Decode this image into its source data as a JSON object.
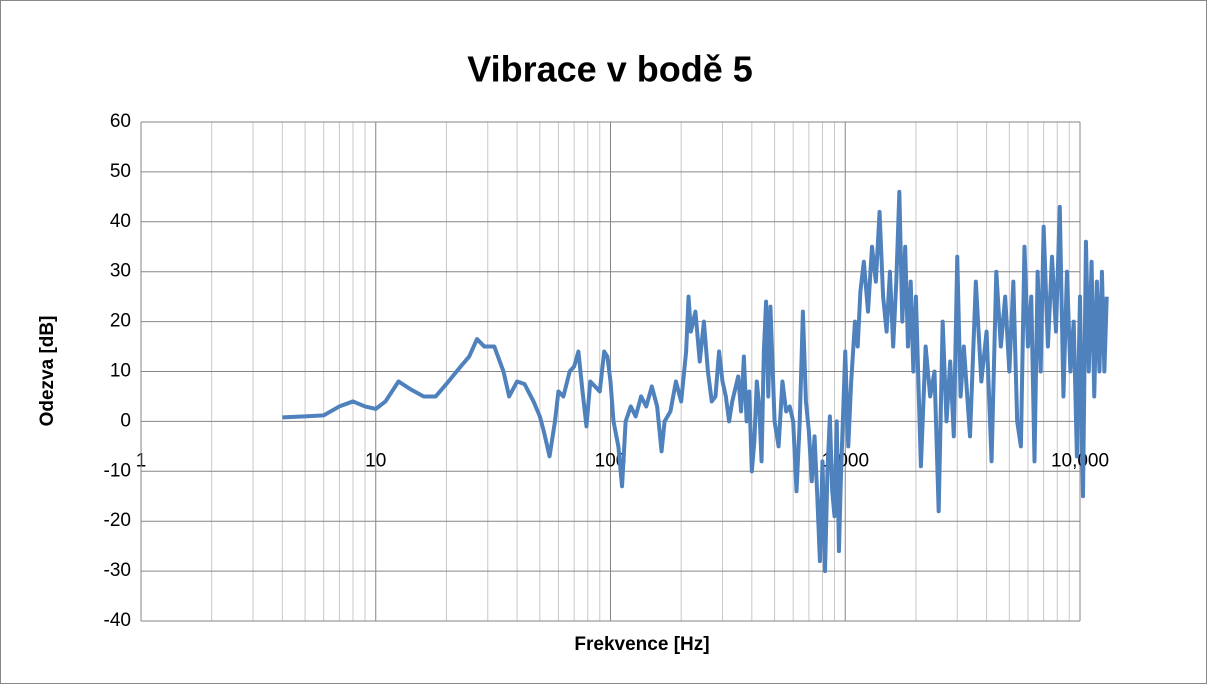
{
  "chart_data": {
    "type": "line",
    "title": "Vibrace v bodě 5",
    "x_label": "Frekvence [Hz]",
    "y_label": "Odezva [dB]",
    "xscale": "log",
    "grid": true,
    "xlim": [
      1,
      10000
    ],
    "ylim": [
      -40,
      60
    ],
    "xticks": [
      1,
      10,
      100,
      {
        "value": 1000,
        "label": "1,000"
      },
      {
        "value": 10000,
        "label": "10,000"
      }
    ],
    "yticks": [
      -40,
      -30,
      -20,
      -10,
      0,
      10,
      20,
      30,
      40,
      50,
      60
    ],
    "x": [
      4,
      5,
      6,
      7,
      8,
      9,
      10,
      11,
      12.5,
      14,
      16,
      18,
      20,
      23,
      25,
      27,
      29,
      32,
      35,
      37,
      40,
      43,
      47,
      50,
      52,
      55,
      58,
      60,
      63,
      67,
      70,
      73,
      76,
      79,
      82,
      86,
      90,
      94,
      97,
      100,
      103,
      108,
      112,
      116,
      122,
      128,
      135,
      142,
      150,
      158,
      165,
      170,
      180,
      190,
      200,
      210,
      215,
      220,
      230,
      240,
      250,
      260,
      270,
      280,
      290,
      300,
      310,
      320,
      330,
      350,
      360,
      370,
      380,
      390,
      400,
      410,
      420,
      430,
      440,
      450,
      460,
      470,
      480,
      500,
      520,
      540,
      560,
      580,
      600,
      620,
      640,
      660,
      680,
      700,
      720,
      740,
      760,
      780,
      800,
      820,
      840,
      860,
      880,
      900,
      920,
      940,
      960,
      980,
      1000,
      1030,
      1060,
      1100,
      1130,
      1160,
      1200,
      1250,
      1300,
      1350,
      1400,
      1450,
      1500,
      1550,
      1600,
      1650,
      1700,
      1750,
      1800,
      1850,
      1900,
      1950,
      2000,
      2100,
      2200,
      2300,
      2400,
      2500,
      2600,
      2700,
      2800,
      2900,
      3000,
      3100,
      3200,
      3400,
      3600,
      3800,
      4000,
      4200,
      4400,
      4600,
      4800,
      5000,
      5200,
      5400,
      5600,
      5800,
      6000,
      6200,
      6400,
      6600,
      6800,
      7000,
      7300,
      7600,
      7900,
      8200,
      8500,
      8800,
      9100,
      9400,
      9700,
      10000,
      10300,
      10600,
      10900,
      11200,
      11500,
      11800,
      12100,
      12400,
      12700,
      13000
    ],
    "series": [
      {
        "name": "Odezva",
        "color": "#4f81bd",
        "values": [
          0.8,
          1,
          1.2,
          3,
          4,
          3,
          2.5,
          4,
          8,
          6.5,
          5,
          5,
          7.5,
          11,
          13,
          16.5,
          15,
          15,
          10,
          5,
          8,
          7.5,
          4,
          1,
          -2,
          -7,
          0,
          6,
          5,
          10,
          11,
          14,
          6,
          -1,
          8,
          7,
          6,
          14,
          13,
          8,
          0,
          -5,
          -13,
          0,
          3,
          1,
          5,
          3,
          7,
          3,
          -6,
          0,
          2,
          8,
          4,
          14,
          25,
          18,
          22,
          12,
          20,
          10,
          4,
          5,
          14,
          8,
          5,
          0,
          4,
          9,
          2,
          13,
          0,
          6,
          -10,
          -4,
          8,
          3,
          -8,
          14,
          24,
          5,
          23,
          0,
          -5,
          8,
          2,
          3,
          0,
          -14,
          0,
          22,
          4,
          -2,
          -12,
          -3,
          -15,
          -28,
          -8,
          -30,
          -10,
          1,
          -14,
          -19,
          0,
          -26,
          -10,
          2,
          14,
          -5,
          8,
          20,
          15,
          26,
          32,
          22,
          35,
          28,
          42,
          25,
          18,
          30,
          15,
          28,
          46,
          20,
          35,
          15,
          28,
          10,
          25,
          -9,
          15,
          5,
          10,
          -18,
          20,
          0,
          12,
          -3,
          33,
          5,
          15,
          -3,
          28,
          8,
          18,
          -8,
          30,
          15,
          25,
          10,
          28,
          0,
          -5,
          35,
          15,
          25,
          -8,
          30,
          10,
          39,
          15,
          33,
          18,
          43,
          5,
          30,
          10,
          20,
          -7,
          25,
          -15,
          36,
          10,
          32,
          5,
          28,
          10,
          30,
          10,
          25
        ]
      }
    ]
  }
}
